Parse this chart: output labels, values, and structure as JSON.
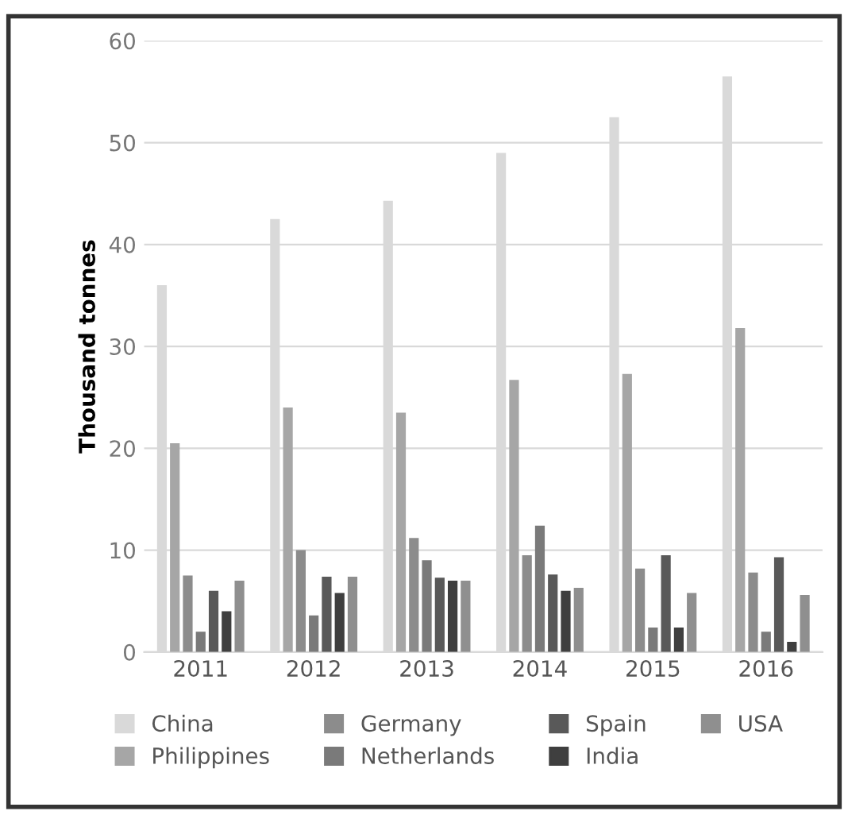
{
  "chart_data": {
    "type": "bar",
    "ylabel": "Thousand tonnes",
    "categories": [
      "2011",
      "2012",
      "2013",
      "2014",
      "2015",
      "2016"
    ],
    "series": [
      {
        "name": "China",
        "color": "#d9d9d9",
        "values": [
          36,
          42.5,
          44.3,
          49,
          52.5,
          56.5
        ]
      },
      {
        "name": "Philippines",
        "color": "#a6a6a6",
        "values": [
          20.5,
          24,
          23.5,
          26.7,
          27.3,
          31.8
        ]
      },
      {
        "name": "Germany",
        "color": "#8c8c8c",
        "values": [
          7.5,
          10,
          11.2,
          9.5,
          8.2,
          7.8
        ]
      },
      {
        "name": "Netherlands",
        "color": "#7a7a7a",
        "values": [
          2,
          3.6,
          9,
          12.4,
          2.4,
          2
        ]
      },
      {
        "name": "Spain",
        "color": "#595959",
        "values": [
          6,
          7.4,
          7.3,
          7.6,
          9.5,
          9.3
        ]
      },
      {
        "name": "India",
        "color": "#3f3f3f",
        "values": [
          4,
          5.8,
          7,
          6,
          2.4,
          1
        ]
      },
      {
        "name": "USA",
        "color": "#8f8f8f",
        "values": [
          7,
          7.4,
          7,
          6.3,
          5.8,
          5.6
        ]
      }
    ],
    "ylim": [
      0,
      60
    ],
    "yticks": [
      0,
      10,
      20,
      30,
      40,
      50,
      60
    ],
    "grid": "y",
    "legend": "bottom"
  }
}
